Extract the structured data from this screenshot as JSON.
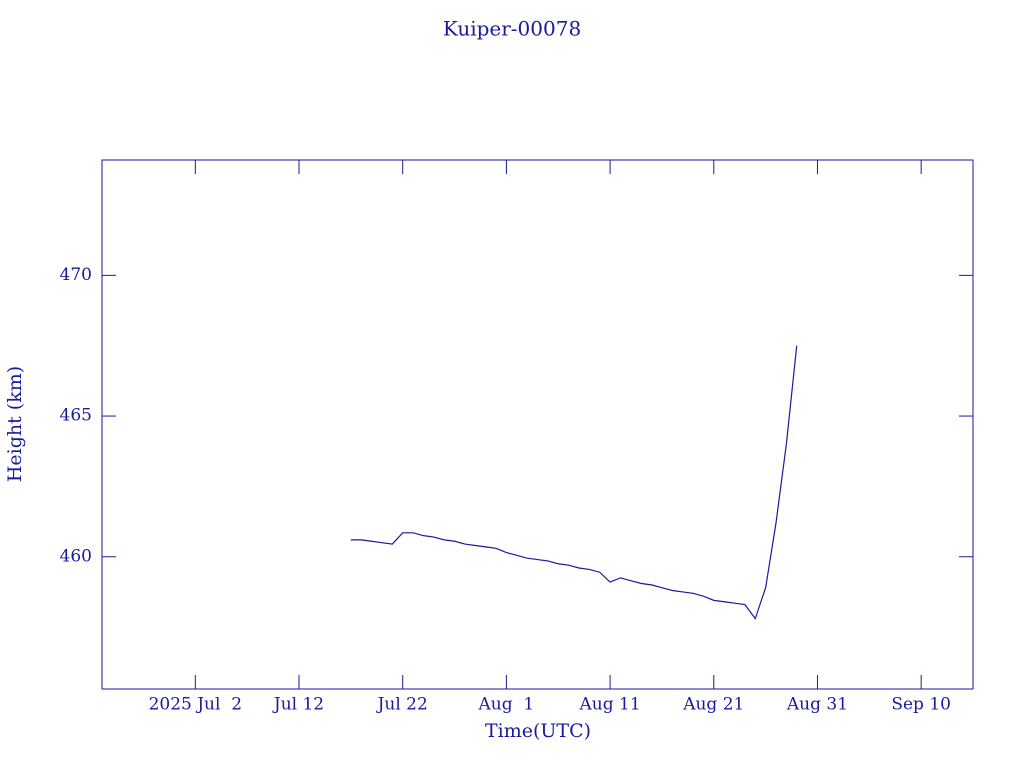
{
  "chart_data": {
    "type": "line",
    "title": "Kuiper-00078",
    "x_label": "Time(UTC)",
    "y_label": "Height (km)",
    "color": "#1a1a9a",
    "xlim": [
      "2025-06-23",
      "2025-09-15"
    ],
    "xticks": [
      {
        "value": "2025-07-02",
        "label": "2025 Jul  2"
      },
      {
        "value": "2025-07-12",
        "label": "Jul 12"
      },
      {
        "value": "2025-07-22",
        "label": "Jul 22"
      },
      {
        "value": "2025-08-01",
        "label": "Aug  1"
      },
      {
        "value": "2025-08-11",
        "label": "Aug 11"
      },
      {
        "value": "2025-08-21",
        "label": "Aug 21"
      },
      {
        "value": "2025-08-31",
        "label": "Aug 31"
      },
      {
        "value": "2025-09-10",
        "label": "Sep 10"
      }
    ],
    "ylim": [
      455.3,
      474.1
    ],
    "yticks": [
      460,
      465,
      470
    ],
    "x": [
      "2025-07-17",
      "2025-07-18",
      "2025-07-19",
      "2025-07-20",
      "2025-07-21",
      "2025-07-22",
      "2025-07-23",
      "2025-07-24",
      "2025-07-25",
      "2025-07-26",
      "2025-07-27",
      "2025-07-28",
      "2025-07-29",
      "2025-07-30",
      "2025-07-31",
      "2025-08-01",
      "2025-08-02",
      "2025-08-03",
      "2025-08-04",
      "2025-08-05",
      "2025-08-06",
      "2025-08-07",
      "2025-08-08",
      "2025-08-09",
      "2025-08-10",
      "2025-08-11",
      "2025-08-12",
      "2025-08-13",
      "2025-08-14",
      "2025-08-15",
      "2025-08-16",
      "2025-08-17",
      "2025-08-18",
      "2025-08-19",
      "2025-08-20",
      "2025-08-21",
      "2025-08-22",
      "2025-08-23",
      "2025-08-24",
      "2025-08-25",
      "2025-08-26",
      "2025-08-27",
      "2025-08-28",
      "2025-08-29"
    ],
    "values": [
      460.6,
      460.6,
      460.55,
      460.5,
      460.45,
      460.85,
      460.85,
      460.75,
      460.7,
      460.6,
      460.55,
      460.45,
      460.4,
      460.35,
      460.3,
      460.15,
      460.05,
      459.95,
      459.9,
      459.85,
      459.75,
      459.7,
      459.6,
      459.55,
      459.45,
      459.1,
      459.25,
      459.15,
      459.05,
      459.0,
      458.9,
      458.8,
      458.75,
      458.7,
      458.6,
      458.45,
      458.4,
      458.35,
      458.3,
      457.8,
      458.9,
      461.2,
      464.0,
      467.5
    ]
  }
}
